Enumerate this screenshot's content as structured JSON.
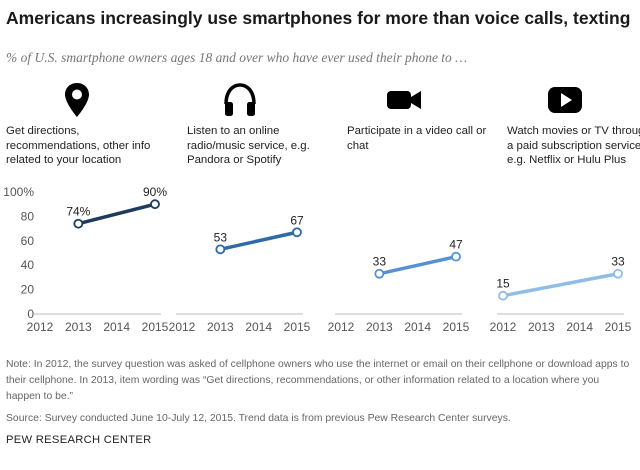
{
  "header": {
    "title": "Americans increasingly use smartphones for more than voice calls, texting",
    "subtitle": "% of U.S. smartphone owners ages 18 and over who have ever used their phone to …"
  },
  "panels": [
    {
      "icon": "map-pin-icon",
      "description": "Get directions, recommendations, other info related to your location"
    },
    {
      "icon": "headphones-icon",
      "description": "Listen to an online radio/music service, e.g. Pandora or Spotify"
    },
    {
      "icon": "video-camera-icon",
      "description": "Participate in a video call or chat"
    },
    {
      "icon": "play-button-icon",
      "description": "Watch movies or TV through a paid subscription service, e.g. Netflix or Hulu Plus"
    }
  ],
  "chart_data": {
    "type": "line",
    "x": [
      "2012",
      "2013",
      "2014",
      "2015"
    ],
    "ylim": [
      0,
      100
    ],
    "yticks": [
      "0",
      "20",
      "40",
      "60",
      "80",
      "100%"
    ],
    "grid": false,
    "series": [
      {
        "name": "Get directions, recommendations, other info related to your location",
        "points": [
          {
            "x": 2013,
            "y": 74
          },
          {
            "x": 2015,
            "y": 90
          }
        ],
        "labels": [
          "74%",
          "90%"
        ],
        "color": "#1f3a5f"
      },
      {
        "name": "Listen to an online radio/music service, e.g. Pandora or Spotify",
        "points": [
          {
            "x": 2013,
            "y": 53
          },
          {
            "x": 2015,
            "y": 67
          }
        ],
        "labels": [
          "53",
          "67"
        ],
        "color": "#2e6aa8"
      },
      {
        "name": "Participate in a video call or chat",
        "points": [
          {
            "x": 2013,
            "y": 33
          },
          {
            "x": 2015,
            "y": 47
          }
        ],
        "labels": [
          "33",
          "47"
        ],
        "color": "#5591d4"
      },
      {
        "name": "Watch movies or TV through a paid subscription service, e.g. Netflix or Hulu Plus",
        "points": [
          {
            "x": 2012,
            "y": 15
          },
          {
            "x": 2015,
            "y": 33
          }
        ],
        "labels": [
          "15",
          "33"
        ],
        "color": "#8fbde8"
      }
    ]
  },
  "footer": {
    "note": "Note: In 2012, the survey question was asked of cellphone owners who use the internet or email on their cellphone or download apps to their cellphone. In 2013,  item wording was “Get directions, recommendations, or other information related to a location where you happen to be.”",
    "source": "Source: Survey conducted June 10-July 12, 2015.  Trend data is from previous Pew Research Center surveys.",
    "brand": "PEW RESEARCH CENTER"
  }
}
